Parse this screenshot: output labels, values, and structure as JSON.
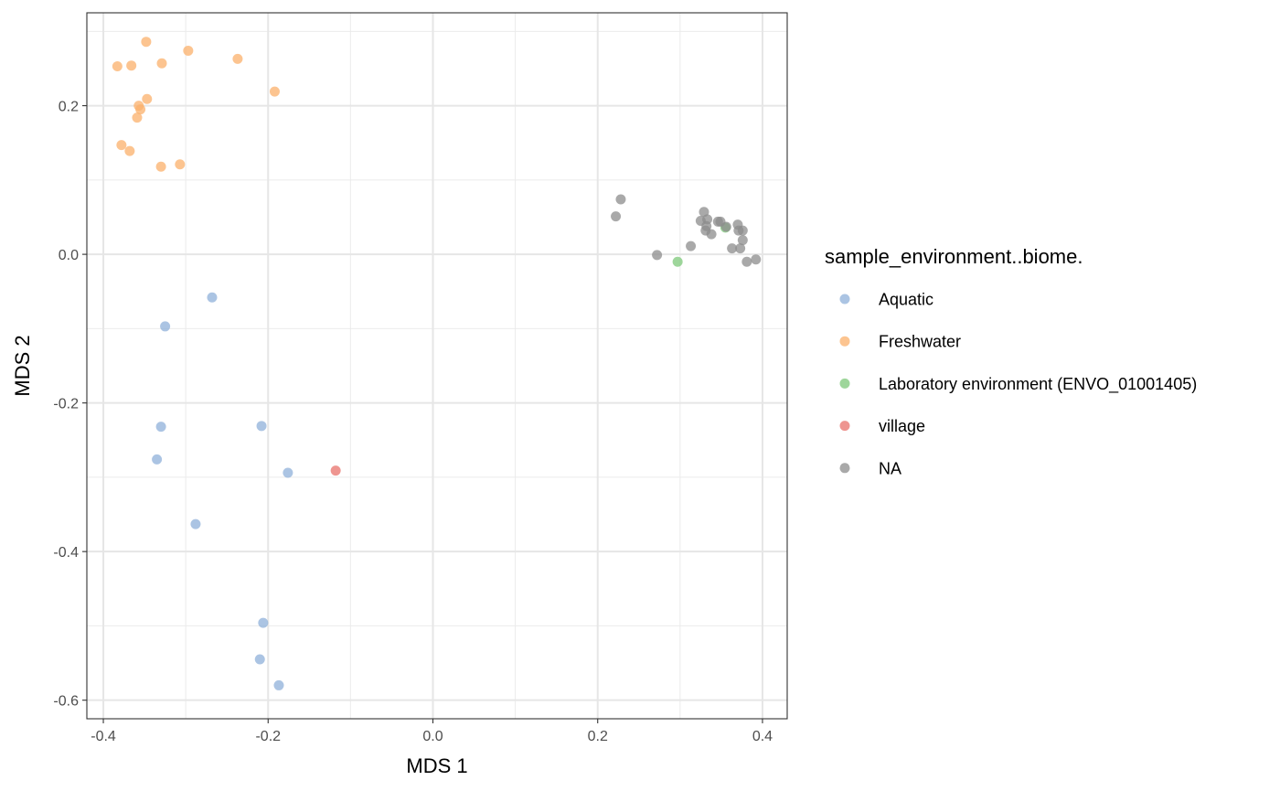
{
  "chart_data": {
    "type": "scatter",
    "xlabel": "MDS 1",
    "ylabel": "MDS 2",
    "xlim": [
      -0.42,
      0.43
    ],
    "ylim": [
      -0.625,
      0.325
    ],
    "x_ticks": [
      -0.4,
      -0.2,
      0.0,
      0.2,
      0.4
    ],
    "x_tick_labels": [
      "-0.4",
      "-0.2",
      "0.0",
      "0.2",
      "0.4"
    ],
    "y_ticks": [
      -0.6,
      -0.4,
      -0.2,
      0.0,
      0.2
    ],
    "y_tick_labels": [
      "-0.6",
      "-0.4",
      "-0.2",
      "0.0",
      "0.2"
    ],
    "grid": true,
    "legend": {
      "title": "sample_environment..biome.",
      "position": "right"
    },
    "series": [
      {
        "name": "Aquatic",
        "color": "#8fb0d9",
        "points": [
          {
            "x": -0.268,
            "y": -0.058
          },
          {
            "x": -0.325,
            "y": -0.097
          },
          {
            "x": -0.33,
            "y": -0.232
          },
          {
            "x": -0.208,
            "y": -0.231
          },
          {
            "x": -0.335,
            "y": -0.276
          },
          {
            "x": -0.176,
            "y": -0.294
          },
          {
            "x": -0.288,
            "y": -0.363
          },
          {
            "x": -0.206,
            "y": -0.496
          },
          {
            "x": -0.21,
            "y": -0.545
          },
          {
            "x": -0.187,
            "y": -0.58
          }
        ]
      },
      {
        "name": "Freshwater",
        "color": "#fbb06b",
        "points": [
          {
            "x": -0.348,
            "y": 0.286
          },
          {
            "x": -0.297,
            "y": 0.274
          },
          {
            "x": -0.237,
            "y": 0.263
          },
          {
            "x": -0.383,
            "y": 0.253
          },
          {
            "x": -0.366,
            "y": 0.254
          },
          {
            "x": -0.329,
            "y": 0.257
          },
          {
            "x": -0.192,
            "y": 0.219
          },
          {
            "x": -0.347,
            "y": 0.209
          },
          {
            "x": -0.357,
            "y": 0.2
          },
          {
            "x": -0.355,
            "y": 0.195
          },
          {
            "x": -0.359,
            "y": 0.184
          },
          {
            "x": -0.378,
            "y": 0.147
          },
          {
            "x": -0.368,
            "y": 0.139
          },
          {
            "x": -0.307,
            "y": 0.121
          },
          {
            "x": -0.33,
            "y": 0.118
          }
        ]
      },
      {
        "name": "Laboratory environment (ENVO_01001405)",
        "color": "#7ec87a",
        "points": [
          {
            "x": 0.297,
            "y": -0.01
          },
          {
            "x": 0.355,
            "y": 0.036
          }
        ]
      },
      {
        "name": "village",
        "color": "#e8716b",
        "points": [
          {
            "x": -0.118,
            "y": -0.291
          }
        ]
      },
      {
        "name": "NA",
        "color": "#8c8c8c",
        "points": [
          {
            "x": 0.228,
            "y": 0.074
          },
          {
            "x": 0.222,
            "y": 0.051
          },
          {
            "x": 0.272,
            "y": -0.001
          },
          {
            "x": 0.313,
            "y": 0.011
          },
          {
            "x": 0.329,
            "y": 0.057
          },
          {
            "x": 0.325,
            "y": 0.045
          },
          {
            "x": 0.333,
            "y": 0.047
          },
          {
            "x": 0.332,
            "y": 0.038
          },
          {
            "x": 0.331,
            "y": 0.032
          },
          {
            "x": 0.338,
            "y": 0.027
          },
          {
            "x": 0.346,
            "y": 0.044
          },
          {
            "x": 0.349,
            "y": 0.044
          },
          {
            "x": 0.356,
            "y": 0.037
          },
          {
            "x": 0.37,
            "y": 0.04
          },
          {
            "x": 0.371,
            "y": 0.032
          },
          {
            "x": 0.376,
            "y": 0.032
          },
          {
            "x": 0.376,
            "y": 0.019
          },
          {
            "x": 0.363,
            "y": 0.008
          },
          {
            "x": 0.373,
            "y": 0.008
          },
          {
            "x": 0.381,
            "y": -0.01
          },
          {
            "x": 0.392,
            "y": -0.007
          }
        ]
      }
    ]
  }
}
